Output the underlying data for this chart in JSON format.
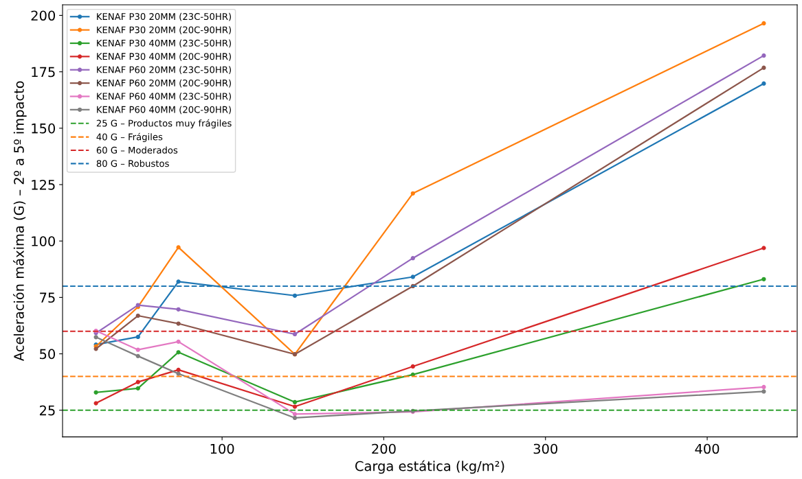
{
  "chart_data": {
    "type": "line",
    "xlabel": "Carga estática (kg/m²)",
    "ylabel": "Aceleración máxima (G) – 2º a 5º impacto",
    "x": [
      22,
      48,
      73,
      145,
      218,
      435
    ],
    "series": [
      {
        "name": "KENAF P30 20MM (23C-50HR)",
        "color": "#1f77b4",
        "values": [
          54.1,
          57.5,
          82.0,
          75.8,
          84.1,
          169.8
        ]
      },
      {
        "name": "KENAF P30 20MM (20C-90HR)",
        "color": "#ff7f0e",
        "values": [
          53.3,
          70.8,
          97.2,
          49.8,
          121.1,
          196.5
        ]
      },
      {
        "name": "KENAF P30 40MM (23C-50HR)",
        "color": "#2ca02c",
        "values": [
          32.9,
          34.7,
          50.7,
          28.6,
          40.8,
          83.1
        ]
      },
      {
        "name": "KENAF P30 40MM (20C-90HR)",
        "color": "#d62728",
        "values": [
          28.1,
          37.5,
          42.9,
          26.6,
          44.4,
          96.9
        ]
      },
      {
        "name": "KENAF P60 20MM (23C-50HR)",
        "color": "#9467bd",
        "values": [
          59.2,
          71.6,
          69.7,
          58.7,
          92.4,
          182.2
        ]
      },
      {
        "name": "KENAF P60 20MM (20C-90HR)",
        "color": "#8c564b",
        "values": [
          52.2,
          66.9,
          63.4,
          49.8,
          80.0,
          176.8
        ]
      },
      {
        "name": "KENAF P60 40MM (23C-50HR)",
        "color": "#e377c2",
        "values": [
          60.2,
          51.8,
          55.4,
          23.3,
          24.3,
          35.3
        ]
      },
      {
        "name": "KENAF P60 40MM (20C-90HR)",
        "color": "#7f7f7f",
        "values": [
          57.4,
          49.0,
          41.2,
          21.6,
          24.7,
          33.3
        ]
      }
    ],
    "ref_lines": [
      {
        "axis": "y",
        "value": 25,
        "label": "25 G – Productos muy frágiles",
        "color": "#2ca02c",
        "line_style": "dashed"
      },
      {
        "axis": "y",
        "value": 40,
        "label": "40 G – Frágiles",
        "color": "#ff7f0e",
        "line_style": "dashed"
      },
      {
        "axis": "y",
        "value": 60,
        "label": "60 G – Moderados",
        "color": "#d62728",
        "line_style": "dashed"
      },
      {
        "axis": "y",
        "value": 80,
        "label": "80 G – Robustos",
        "color": "#1f77b4",
        "line_style": "dashed"
      }
    ],
    "xlim": [
      1.35,
      455.65
    ],
    "xticks": [
      100,
      200,
      300,
      400
    ],
    "ylim": [
      13.2,
      204.7
    ],
    "yticks": [
      25,
      50,
      75,
      100,
      125,
      150,
      175,
      200
    ],
    "marker": "circle",
    "line_style": "solid",
    "grid": false,
    "legend": "top left"
  }
}
